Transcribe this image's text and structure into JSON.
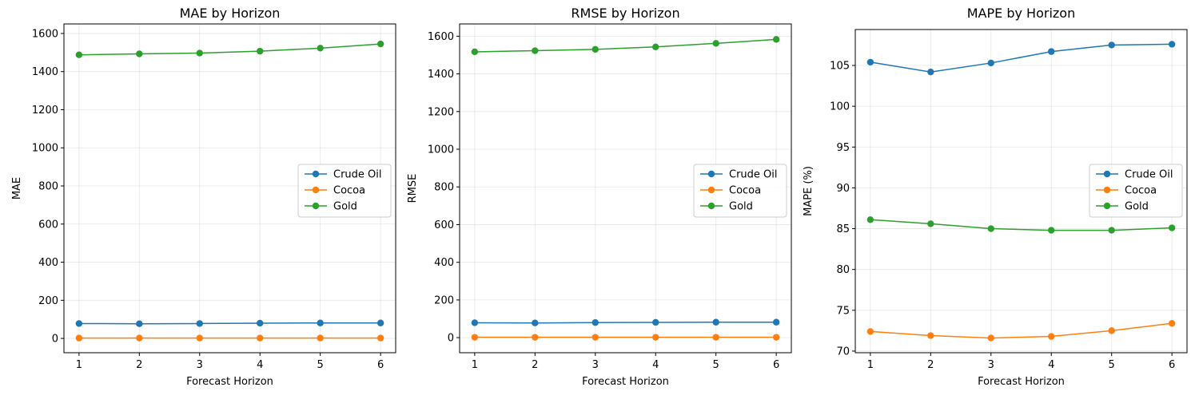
{
  "chart_data": [
    {
      "type": "line",
      "title": "MAE by Horizon",
      "xlabel": "Forecast Horizon",
      "ylabel": "MAE",
      "x": [
        1,
        2,
        3,
        4,
        5,
        6
      ],
      "xlim": [
        0.75,
        6.25
      ],
      "ylim": [
        -75,
        1650
      ],
      "yticks": [
        0,
        200,
        400,
        600,
        800,
        1000,
        1200,
        1400,
        1600
      ],
      "grid": true,
      "legend_position": "center-right",
      "series": [
        {
          "name": "Crude Oil",
          "color": "#1f77b4",
          "values": [
            78,
            77,
            78,
            80,
            81,
            81
          ]
        },
        {
          "name": "Cocoa",
          "color": "#ff7f0e",
          "values": [
            2,
            2,
            2,
            2,
            2,
            2
          ]
        },
        {
          "name": "Gold",
          "color": "#2ca02c",
          "values": [
            1488,
            1493,
            1497,
            1507,
            1523,
            1545
          ]
        }
      ]
    },
    {
      "type": "line",
      "title": "RMSE by Horizon",
      "xlabel": "Forecast Horizon",
      "ylabel": "RMSE",
      "x": [
        1,
        2,
        3,
        4,
        5,
        6
      ],
      "xlim": [
        0.75,
        6.25
      ],
      "ylim": [
        -80,
        1665
      ],
      "yticks": [
        0,
        200,
        400,
        600,
        800,
        1000,
        1200,
        1400,
        1600
      ],
      "grid": true,
      "legend_position": "center-right",
      "series": [
        {
          "name": "Crude Oil",
          "color": "#1f77b4",
          "values": [
            79,
            78,
            80,
            81,
            82,
            82
          ]
        },
        {
          "name": "Cocoa",
          "color": "#ff7f0e",
          "values": [
            2,
            2,
            2,
            2,
            2,
            2
          ]
        },
        {
          "name": "Gold",
          "color": "#2ca02c",
          "values": [
            1517,
            1523,
            1530,
            1543,
            1562,
            1583
          ]
        }
      ]
    },
    {
      "type": "line",
      "title": "MAPE by Horizon",
      "xlabel": "Forecast Horizon",
      "ylabel": "MAPE (%)",
      "x": [
        1,
        2,
        3,
        4,
        5,
        6
      ],
      "xlim": [
        0.75,
        6.25
      ],
      "ylim": [
        69.8,
        109.4
      ],
      "yticks": [
        70,
        75,
        80,
        85,
        90,
        95,
        100,
        105
      ],
      "grid": true,
      "legend_position": "center-right",
      "series": [
        {
          "name": "Crude Oil",
          "color": "#1f77b4",
          "values": [
            105.4,
            104.2,
            105.3,
            106.7,
            107.5,
            107.6
          ]
        },
        {
          "name": "Cocoa",
          "color": "#ff7f0e",
          "values": [
            72.4,
            71.9,
            71.6,
            71.8,
            72.5,
            73.4
          ]
        },
        {
          "name": "Gold",
          "color": "#2ca02c",
          "values": [
            86.1,
            85.6,
            85.0,
            84.8,
            84.8,
            85.1
          ]
        }
      ]
    }
  ]
}
